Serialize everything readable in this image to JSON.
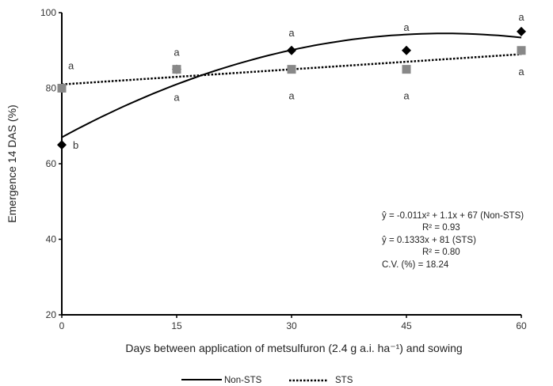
{
  "chart_data": {
    "type": "scatter",
    "title": "",
    "xlabel": "Days between application of metsulfuron (2.4 g a.i. ha⁻¹) and sowing",
    "ylabel": "Emergence 14 DAS (%)",
    "xlim": [
      0,
      60
    ],
    "ylim": [
      20,
      100
    ],
    "xticks": [
      0,
      15,
      30,
      45,
      60
    ],
    "yticks": [
      20,
      40,
      60,
      80,
      100
    ],
    "grid": false,
    "legend": "bottom",
    "x": [
      0,
      15,
      30,
      45,
      60
    ],
    "series": [
      {
        "name": "Non-STS",
        "marker": "diamond",
        "color": "#000000",
        "line": "solid",
        "values": [
          65,
          85,
          90,
          90,
          95
        ],
        "fit": {
          "type": "quadratic",
          "a": -0.011,
          "b": 1.1,
          "c": 67
        },
        "letters": [
          "b",
          "a",
          "a",
          "a",
          "a"
        ]
      },
      {
        "name": "STS",
        "marker": "square",
        "color": "#888888",
        "line": "dotted",
        "values": [
          80,
          85,
          85,
          85,
          90
        ],
        "fit": {
          "type": "linear",
          "slope": 0.1333,
          "intercept": 81
        },
        "letters": [
          "a",
          "a",
          "a",
          "a",
          "a"
        ]
      }
    ],
    "annotations": [
      "ŷ = -0.011x² + 1.1x + 67 (Non-STS)",
      "R² = 0.93",
      "ŷ = 0.1333x + 81 (STS)",
      "R² = 0.80",
      "C.V. (%) = 18.24"
    ]
  }
}
